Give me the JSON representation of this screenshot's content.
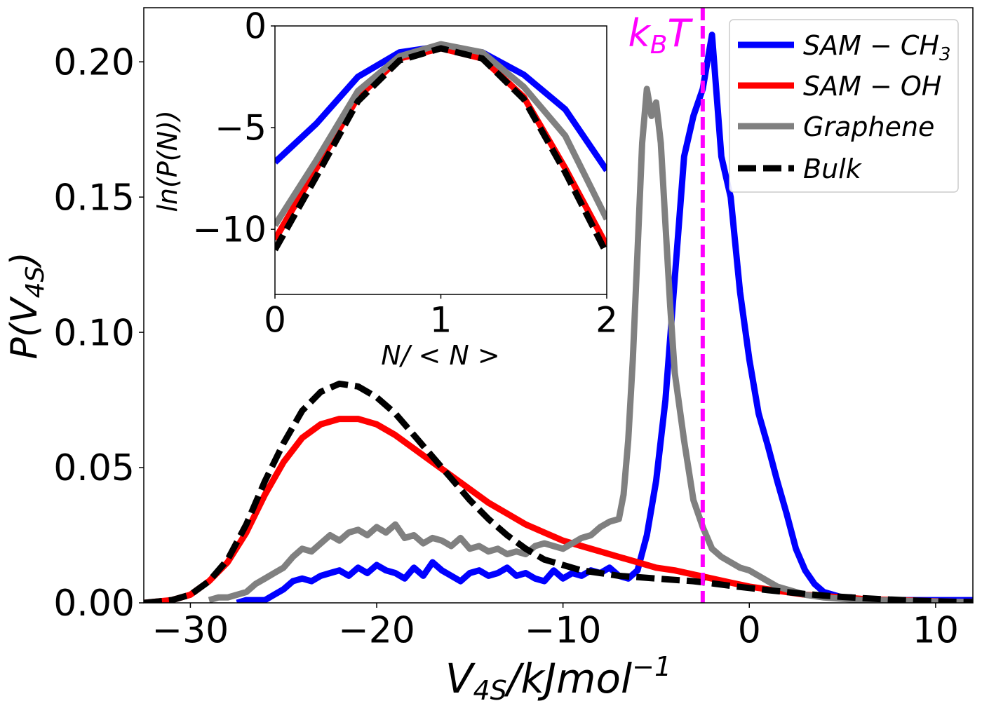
{
  "chart_data": [
    {
      "type": "line",
      "role": "main",
      "xlabel_main": "V",
      "xlabel_sub": "4S",
      "xlabel_rest": "/kJmol",
      "xlabel_sup": "−1",
      "ylabel_main": "P(V",
      "ylabel_sub": "4S",
      "ylabel_close": ")",
      "xlim": [
        -32.5,
        12
      ],
      "ylim": [
        0,
        0.22
      ],
      "xticks": [
        -30,
        -20,
        -10,
        0,
        10
      ],
      "xtick_labels": [
        "−30",
        "−20",
        "−10",
        "0",
        "10"
      ],
      "yticks": [
        0.0,
        0.05,
        0.1,
        0.15,
        0.2
      ],
      "ytick_labels": [
        "0.00",
        "0.05",
        "0.10",
        "0.15",
        "0.20"
      ],
      "grid": false,
      "legend_position": "top-right",
      "annotation": {
        "label_main": "k",
        "label_sub": "B",
        "label_rest": "T",
        "x": -2.5,
        "color": "#ff00ff"
      },
      "series": [
        {
          "name": "SAM − CH3",
          "legend_main": "SAM − CH",
          "legend_sub": "3",
          "color": "#0000ff",
          "x": [
            -27.5,
            -27,
            -26.5,
            -26,
            -25.5,
            -25,
            -24.5,
            -24,
            -23.5,
            -23,
            -22.5,
            -22,
            -21.5,
            -21,
            -20.5,
            -20,
            -19.5,
            -19,
            -18.5,
            -18,
            -17.5,
            -17,
            -16.5,
            -16,
            -15.5,
            -15,
            -14.5,
            -14,
            -13.5,
            -13,
            -12.5,
            -12,
            -11.5,
            -11,
            -10.5,
            -10,
            -9.5,
            -9,
            -8.5,
            -8,
            -7.5,
            -7,
            -6.5,
            -6,
            -5.5,
            -5,
            -4.5,
            -4,
            -3.5,
            -3,
            -2.5,
            -2,
            -1.5,
            -1,
            -0.5,
            0,
            0.5,
            1,
            1.5,
            2,
            2.5,
            3,
            3.5,
            4,
            4.5,
            5,
            5.5,
            6,
            7,
            8,
            9,
            10,
            11,
            12
          ],
          "values": [
            0,
            0.001,
            0.001,
            0.001,
            0.003,
            0.005,
            0.008,
            0.009,
            0.008,
            0.01,
            0.011,
            0.012,
            0.01,
            0.013,
            0.011,
            0.014,
            0.012,
            0.011,
            0.009,
            0.013,
            0.01,
            0.015,
            0.012,
            0.01,
            0.008,
            0.011,
            0.012,
            0.01,
            0.011,
            0.013,
            0.01,
            0.011,
            0.009,
            0.008,
            0.012,
            0.009,
            0.011,
            0.01,
            0.012,
            0.011,
            0.013,
            0.01,
            0.009,
            0.012,
            0.025,
            0.045,
            0.075,
            0.12,
            0.165,
            0.18,
            0.19,
            0.21,
            0.165,
            0.15,
            0.115,
            0.09,
            0.07,
            0.058,
            0.045,
            0.033,
            0.02,
            0.012,
            0.007,
            0.004,
            0.003,
            0.002,
            0.002,
            0.001,
            0.001,
            0.001,
            0.001,
            0.001,
            0.001,
            0.001
          ]
        },
        {
          "name": "SAM − OH",
          "legend_main": "SAM − OH",
          "legend_sub": "",
          "color": "#ff0000",
          "x": [
            -32.5,
            -31,
            -30,
            -29,
            -28,
            -27,
            -26,
            -25,
            -24,
            -23,
            -22,
            -21,
            -20,
            -19,
            -18,
            -17,
            -16,
            -15,
            -14,
            -13,
            -12,
            -11,
            -10,
            -9,
            -8,
            -7,
            -6,
            -5,
            -4,
            -3,
            -2,
            -1,
            0,
            1,
            2,
            3,
            4,
            5,
            6,
            7,
            8,
            9,
            10,
            11,
            12
          ],
          "values": [
            0,
            0.001,
            0.003,
            0.008,
            0.015,
            0.026,
            0.04,
            0.052,
            0.061,
            0.066,
            0.068,
            0.068,
            0.066,
            0.062,
            0.057,
            0.052,
            0.047,
            0.042,
            0.037,
            0.033,
            0.029,
            0.026,
            0.023,
            0.021,
            0.019,
            0.017,
            0.015,
            0.013,
            0.012,
            0.0105,
            0.009,
            0.0075,
            0.006,
            0.005,
            0.004,
            0.003,
            0.0025,
            0.002,
            0.0015,
            0.0012,
            0.001,
            0.0008,
            0.0006,
            0.0004,
            0.0003
          ]
        },
        {
          "name": "Graphene",
          "legend_main": "Graphene",
          "legend_sub": "",
          "color": "#808080",
          "x": [
            -29,
            -28.5,
            -28,
            -27.5,
            -27,
            -26.5,
            -26,
            -25.5,
            -25,
            -24.5,
            -24,
            -23.5,
            -23,
            -22.5,
            -22,
            -21.5,
            -21,
            -20.5,
            -20,
            -19.5,
            -19,
            -18.5,
            -18,
            -17.5,
            -17,
            -16.5,
            -16,
            -15.5,
            -15,
            -14.5,
            -14,
            -13.5,
            -13,
            -12.5,
            -12,
            -11.5,
            -11,
            -10.5,
            -10,
            -9.5,
            -9,
            -8.5,
            -8,
            -7.5,
            -7,
            -6.75,
            -6.5,
            -6.25,
            -6,
            -5.75,
            -5.5,
            -5.25,
            -5,
            -4.75,
            -4.5,
            -4.25,
            -4,
            -3.5,
            -3,
            -2.5,
            -2,
            -1.5,
            -1,
            -0.5,
            0,
            0.5,
            1,
            1.5,
            2,
            2.5,
            3,
            4,
            5,
            6,
            7,
            8,
            10,
            12
          ],
          "values": [
            0.001,
            0.002,
            0.002,
            0.003,
            0.004,
            0.007,
            0.009,
            0.011,
            0.013,
            0.017,
            0.02,
            0.019,
            0.022,
            0.025,
            0.023,
            0.026,
            0.027,
            0.025,
            0.028,
            0.026,
            0.029,
            0.024,
            0.025,
            0.022,
            0.024,
            0.023,
            0.021,
            0.024,
            0.02,
            0.021,
            0.019,
            0.02,
            0.018,
            0.019,
            0.018,
            0.021,
            0.022,
            0.021,
            0.02,
            0.022,
            0.024,
            0.025,
            0.028,
            0.03,
            0.031,
            0.04,
            0.06,
            0.09,
            0.13,
            0.17,
            0.19,
            0.18,
            0.185,
            0.17,
            0.14,
            0.11,
            0.085,
            0.06,
            0.038,
            0.028,
            0.02,
            0.017,
            0.015,
            0.013,
            0.012,
            0.01,
            0.008,
            0.006,
            0.005,
            0.004,
            0.003,
            0.002,
            0.0015,
            0.001,
            0.001,
            0.0008,
            0.0005,
            0.0003
          ]
        },
        {
          "name": "Bulk",
          "legend_main": "Bulk",
          "legend_sub": "",
          "color": "#000000",
          "dashed": true,
          "x": [
            -32.5,
            -31,
            -30,
            -29,
            -28,
            -27,
            -26,
            -25,
            -24,
            -23,
            -22,
            -21,
            -20,
            -19,
            -18,
            -17,
            -16,
            -15,
            -14,
            -13,
            -12,
            -11,
            -10,
            -9,
            -8,
            -7,
            -6,
            -5,
            -4,
            -3,
            -2,
            -1,
            0,
            1,
            2,
            3,
            4,
            5,
            6,
            7,
            8,
            9,
            10,
            11,
            12
          ],
          "values": [
            0,
            0.001,
            0.003,
            0.008,
            0.016,
            0.029,
            0.045,
            0.059,
            0.071,
            0.078,
            0.081,
            0.08,
            0.076,
            0.07,
            0.062,
            0.054,
            0.046,
            0.038,
            0.031,
            0.025,
            0.02,
            0.016,
            0.014,
            0.012,
            0.011,
            0.01,
            0.0095,
            0.009,
            0.0085,
            0.008,
            0.0072,
            0.0063,
            0.0055,
            0.0047,
            0.004,
            0.0033,
            0.0027,
            0.0022,
            0.0018,
            0.0014,
            0.0011,
            0.0008,
            0.0006,
            0.0004,
            0.0003
          ]
        }
      ]
    },
    {
      "type": "line",
      "role": "inset",
      "xlabel": "N/ < N >",
      "ylabel": "ln(P(N))",
      "xlim": [
        0,
        2
      ],
      "ylim": [
        -13.2,
        0
      ],
      "xticks": [
        0,
        1,
        2
      ],
      "xtick_labels": [
        "0",
        "1",
        "2"
      ],
      "yticks": [
        0,
        -5,
        -10
      ],
      "ytick_labels": [
        "0",
        "−5",
        "−10"
      ],
      "grid": false,
      "series": [
        {
          "name": "SAM − CH3",
          "color": "#0000ff",
          "x": [
            0,
            0.25,
            0.5,
            0.75,
            1,
            1.25,
            1.5,
            1.75,
            2
          ],
          "values": [
            -6.7,
            -4.8,
            -2.5,
            -1.3,
            -1.0,
            -1.3,
            -2.4,
            -4.1,
            -7.1
          ]
        },
        {
          "name": "SAM − OH",
          "color": "#ff0000",
          "x": [
            0,
            0.25,
            0.5,
            0.75,
            1,
            1.25,
            1.5,
            1.75,
            2
          ],
          "values": [
            -10.5,
            -7.0,
            -3.5,
            -1.6,
            -1.1,
            -1.6,
            -3.5,
            -7.0,
            -10.8
          ]
        },
        {
          "name": "Graphene",
          "color": "#808080",
          "x": [
            0,
            0.25,
            0.5,
            0.75,
            1,
            1.25,
            1.5,
            1.75,
            2
          ],
          "values": [
            -9.8,
            -6.6,
            -3.2,
            -1.5,
            -0.9,
            -1.3,
            -3.0,
            -5.4,
            -9.5
          ]
        },
        {
          "name": "Bulk",
          "color": "#000000",
          "dashed": true,
          "x": [
            0,
            0.25,
            0.5,
            0.75,
            1,
            1.25,
            1.5,
            1.75,
            2
          ],
          "values": [
            -11.0,
            -7.4,
            -3.7,
            -1.7,
            -1.1,
            -1.6,
            -3.6,
            -7.2,
            -11.2
          ]
        }
      ]
    }
  ]
}
